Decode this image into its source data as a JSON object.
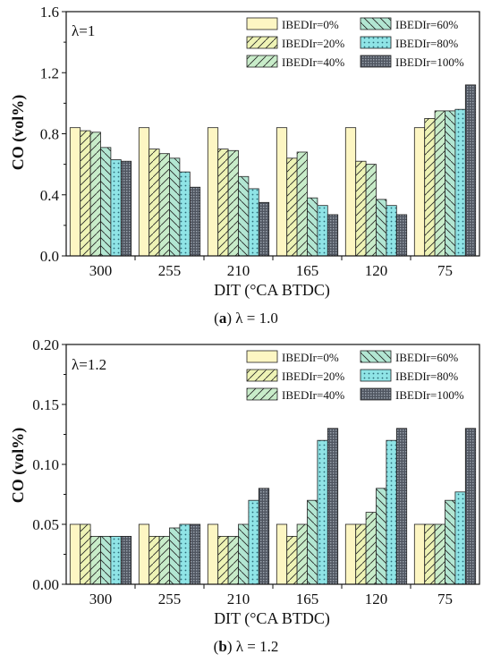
{
  "colors": {
    "series": [
      "#fdf6c3",
      "#eef3b5",
      "#c8ecc9",
      "#b2e6d2",
      "#8fe4e6",
      "#4f5560"
    ],
    "patterns": [
      "none",
      "diag-right",
      "diag-right",
      "diag-left",
      "dots",
      "grid"
    ]
  },
  "chart_data": [
    {
      "type": "bar",
      "panel_label": "λ=1",
      "caption_letter": "a",
      "caption_text": " λ = 1.0",
      "caption_open": "(",
      "caption_close": ")",
      "categories": [
        "300",
        "255",
        "210",
        "165",
        "120",
        "75"
      ],
      "ylim": [
        0,
        1.6
      ],
      "yticks": [
        "0.0",
        "0.4",
        "0.8",
        "1.2",
        "1.6"
      ],
      "xlabel": "DIT (°CA BTDC)",
      "ylabel": "CO (vol%)",
      "legend_position": "top-right",
      "series": [
        {
          "name": "IBEDIr=0%",
          "values": [
            0.84,
            0.84,
            0.84,
            0.84,
            0.84,
            0.84
          ]
        },
        {
          "name": "IBEDIr=20%",
          "values": [
            0.82,
            0.7,
            0.7,
            0.64,
            0.62,
            0.9
          ]
        },
        {
          "name": "IBEDIr=40%",
          "values": [
            0.81,
            0.67,
            0.69,
            0.68,
            0.6,
            0.95
          ]
        },
        {
          "name": "IBEDIr=60%",
          "values": [
            0.71,
            0.64,
            0.52,
            0.38,
            0.37,
            0.95
          ]
        },
        {
          "name": "IBEDIr=80%",
          "values": [
            0.63,
            0.55,
            0.44,
            0.33,
            0.33,
            0.96
          ]
        },
        {
          "name": "IBEDIr=100%",
          "values": [
            0.62,
            0.45,
            0.35,
            0.27,
            0.27,
            1.12
          ]
        }
      ]
    },
    {
      "type": "bar",
      "panel_label": "λ=1.2",
      "caption_letter": "b",
      "caption_text": " λ = 1.2",
      "caption_open": "(",
      "caption_close": ")",
      "categories": [
        "300",
        "255",
        "210",
        "165",
        "120",
        "75"
      ],
      "ylim": [
        0,
        0.2
      ],
      "yticks": [
        "0.00",
        "0.05",
        "0.10",
        "0.15",
        "0.20"
      ],
      "xlabel": "DIT (°CA BTDC)",
      "ylabel": "CO (vol%)",
      "legend_position": "top-right",
      "series": [
        {
          "name": "IBEDIr=0%",
          "values": [
            0.05,
            0.05,
            0.05,
            0.05,
            0.05,
            0.05
          ]
        },
        {
          "name": "IBEDIr=20%",
          "values": [
            0.05,
            0.04,
            0.04,
            0.04,
            0.05,
            0.05
          ]
        },
        {
          "name": "IBEDIr=40%",
          "values": [
            0.04,
            0.04,
            0.04,
            0.05,
            0.06,
            0.05
          ]
        },
        {
          "name": "IBEDIr=60%",
          "values": [
            0.04,
            0.047,
            0.05,
            0.07,
            0.08,
            0.07
          ]
        },
        {
          "name": "IBEDIr=80%",
          "values": [
            0.04,
            0.05,
            0.07,
            0.12,
            0.12,
            0.077
          ]
        },
        {
          "name": "IBEDIr=100%",
          "values": [
            0.04,
            0.05,
            0.08,
            0.13,
            0.13,
            0.13
          ]
        }
      ]
    }
  ]
}
